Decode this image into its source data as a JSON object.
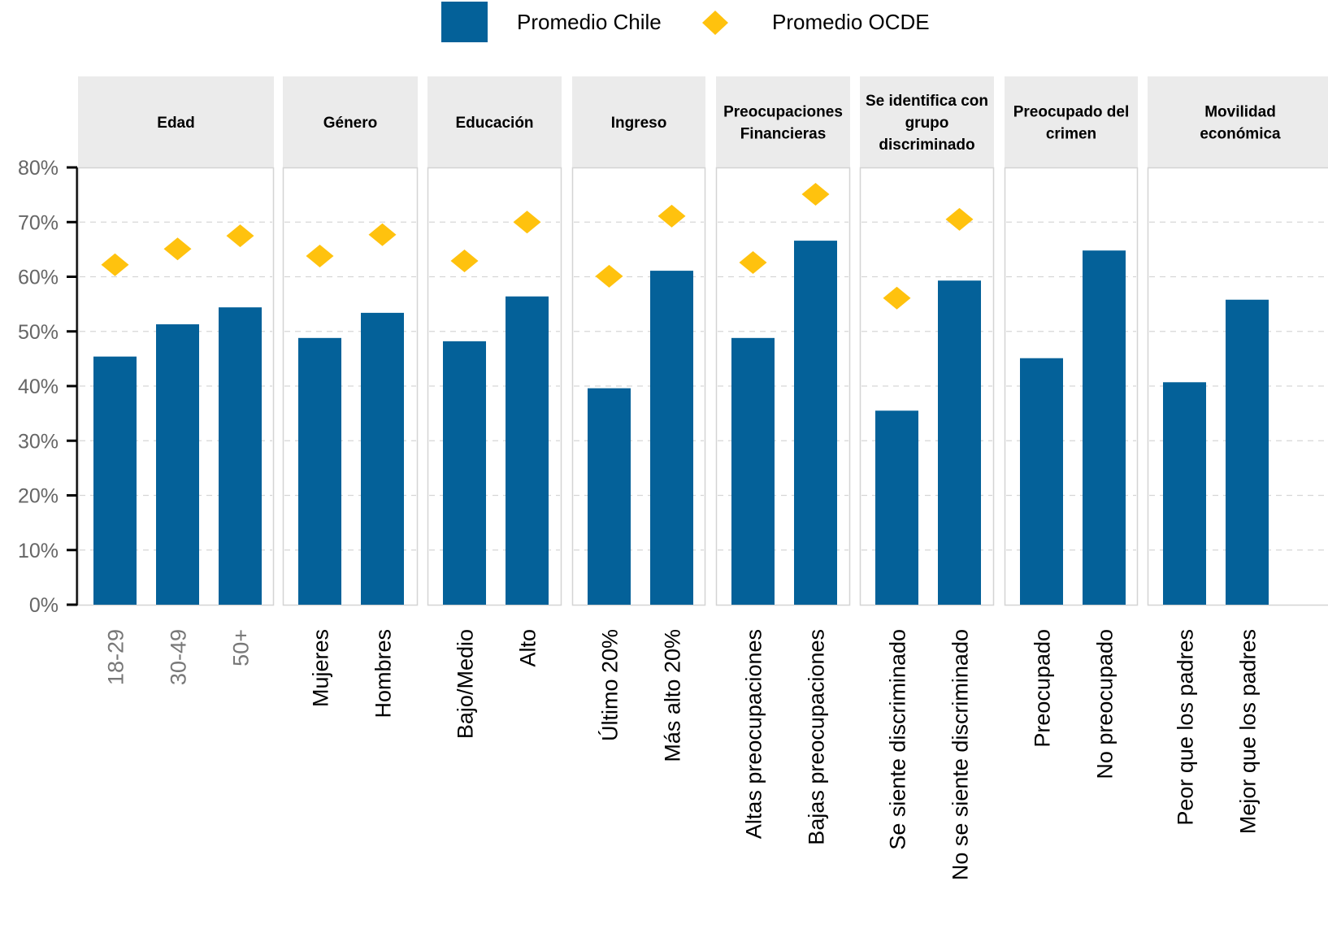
{
  "chart_data": {
    "type": "bar",
    "title": "",
    "xlabel": "",
    "ylabel": "",
    "ylim": [
      0,
      80
    ],
    "yticks": [
      "0%",
      "10%",
      "20%",
      "30%",
      "40%",
      "50%",
      "60%",
      "70%",
      "80%"
    ],
    "ytick_values": [
      0,
      10,
      20,
      30,
      40,
      50,
      60,
      70,
      80
    ],
    "grid": "horizontal dashed",
    "legend_position": "top-center",
    "legend": [
      {
        "name": "Promedio Chile",
        "marker": "bar",
        "color": "#046199"
      },
      {
        "name": "Promedio OCDE",
        "marker": "diamond",
        "color": "#FFC20E"
      }
    ],
    "panels": [
      {
        "title": [
          "Edad"
        ],
        "categories": [
          "18-29",
          "30-49",
          "50+"
        ],
        "chile": [
          45.4,
          51.3,
          54.4
        ],
        "ocde": [
          62.2,
          65.1,
          67.5
        ],
        "label_color": "gray"
      },
      {
        "title": [
          "Género"
        ],
        "categories": [
          "Mujeres",
          "Hombres"
        ],
        "chile": [
          48.8,
          53.4
        ],
        "ocde": [
          63.8,
          67.7
        ]
      },
      {
        "title": [
          "Educación"
        ],
        "categories": [
          "Bajo/Medio",
          "Alto"
        ],
        "chile": [
          48.2,
          56.4
        ],
        "ocde": [
          62.9,
          70.0
        ]
      },
      {
        "title": [
          "Ingreso"
        ],
        "categories": [
          "Último 20%",
          "Más alto 20%"
        ],
        "chile": [
          39.6,
          61.1
        ],
        "ocde": [
          60.1,
          71.1
        ]
      },
      {
        "title": [
          "Preocupaciones",
          "Financieras"
        ],
        "categories": [
          "Altas preocupaciones",
          "Bajas preocupaciones"
        ],
        "chile": [
          48.8,
          66.6
        ],
        "ocde": [
          62.6,
          75.1
        ]
      },
      {
        "title": [
          "Se identifica con",
          "grupo",
          "discriminado"
        ],
        "categories": [
          "Se siente discriminado",
          "No se siente discriminado"
        ],
        "chile": [
          35.5,
          59.3
        ],
        "ocde": [
          56.1,
          70.5
        ]
      },
      {
        "title": [
          "Preocupado del",
          "crimen"
        ],
        "categories": [
          "Preocupado",
          "No preocupado"
        ],
        "chile": [
          45.1,
          64.8
        ],
        "ocde": [
          null,
          null
        ]
      },
      {
        "title": [
          "Movilidad",
          "económica"
        ],
        "categories": [
          "Peor que los padres",
          "Mejor que los padres"
        ],
        "chile": [
          40.7,
          55.8
        ],
        "ocde": [
          null,
          null
        ]
      }
    ]
  },
  "colors": {
    "bar": "#046199",
    "diamond": "#FFC20E",
    "strip_bg": "#EBEBEB",
    "panel_border": "#D4D4D4",
    "grid": "#D6D6D6"
  }
}
